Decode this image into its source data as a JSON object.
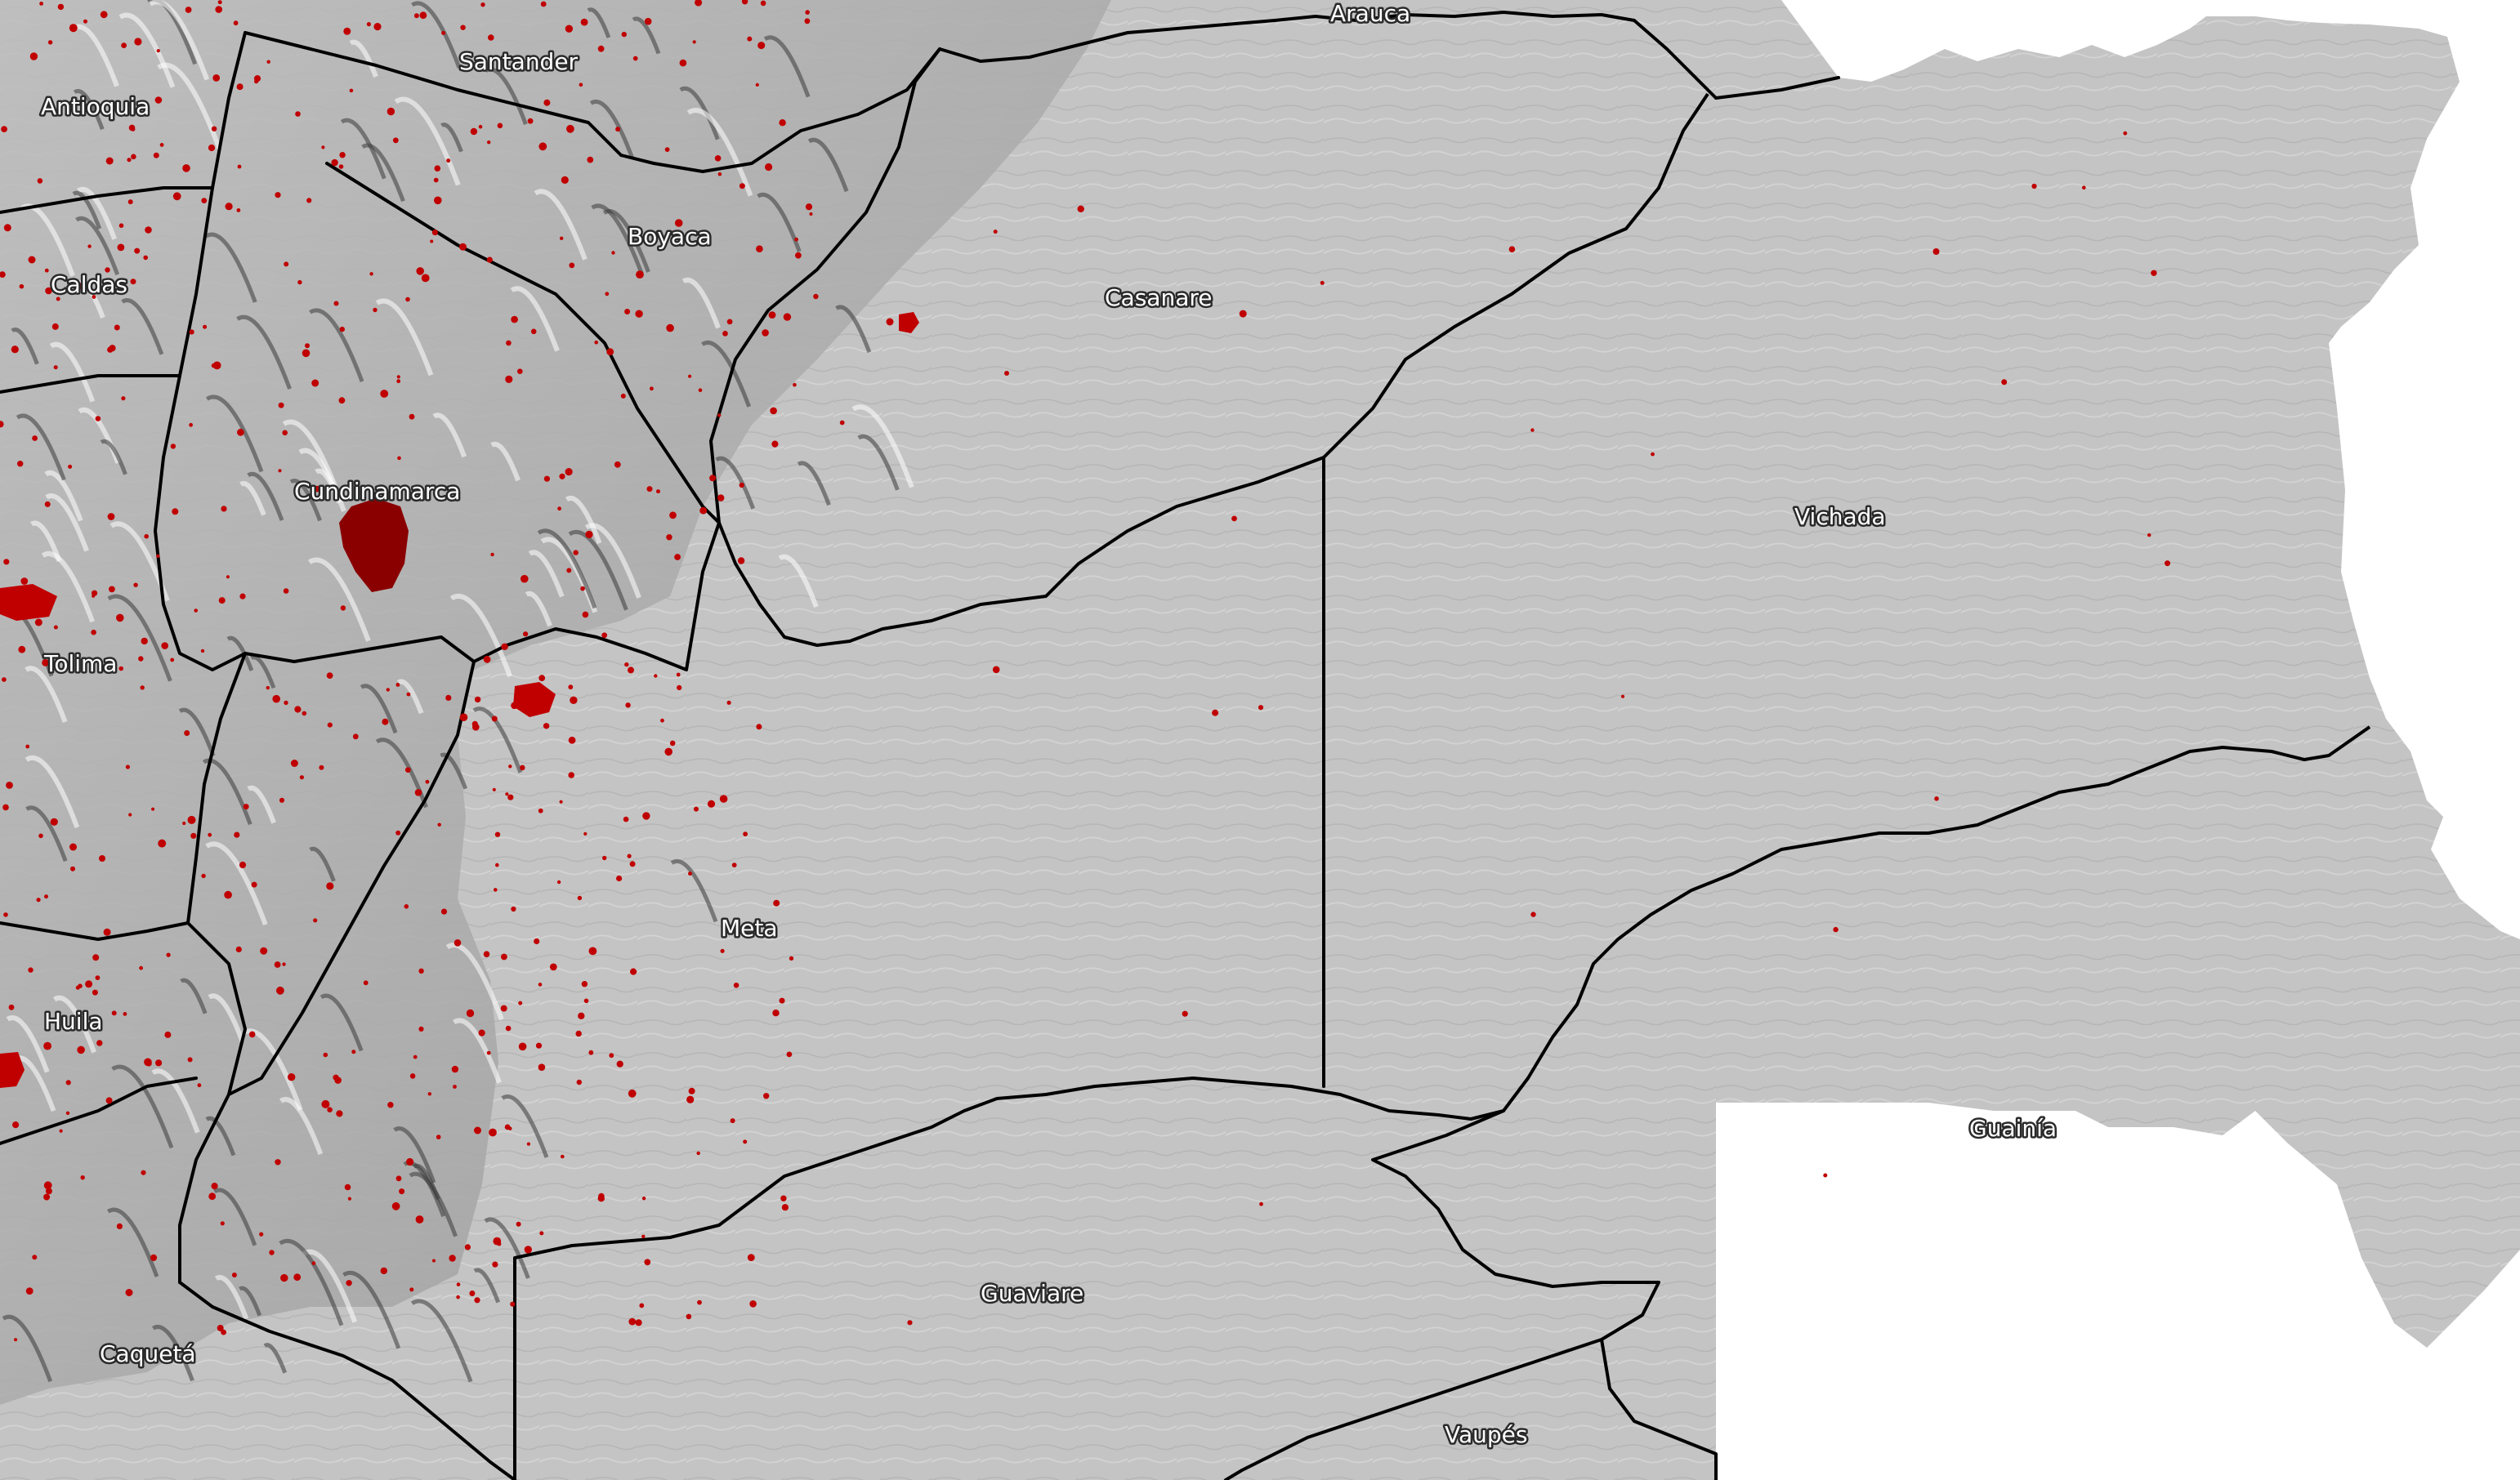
{
  "map": {
    "colors": {
      "terrain": "#c2c2c2",
      "outside": "#ffffff",
      "boundary": "#000000",
      "settlement": "#c00000",
      "settlement_dense": "#8a0000",
      "label_fill": "#ffffff",
      "label_halo": "#2a2a2a"
    },
    "labels": {
      "antioquia": "Antioquia",
      "santander": "Santander",
      "arauca": "Arauca",
      "boyaca": "Boyaca",
      "caldas": "Caldas",
      "casanare": "Casanare",
      "cundinamarca": "Cundinamarca",
      "vichada": "Vichada",
      "tolima": "Tolima",
      "meta": "Meta",
      "huila": "Huila",
      "guainia": "Guainía",
      "guaviare": "Guaviare",
      "caqueta": "Caquetá",
      "vaupes": "Vaupés"
    }
  }
}
